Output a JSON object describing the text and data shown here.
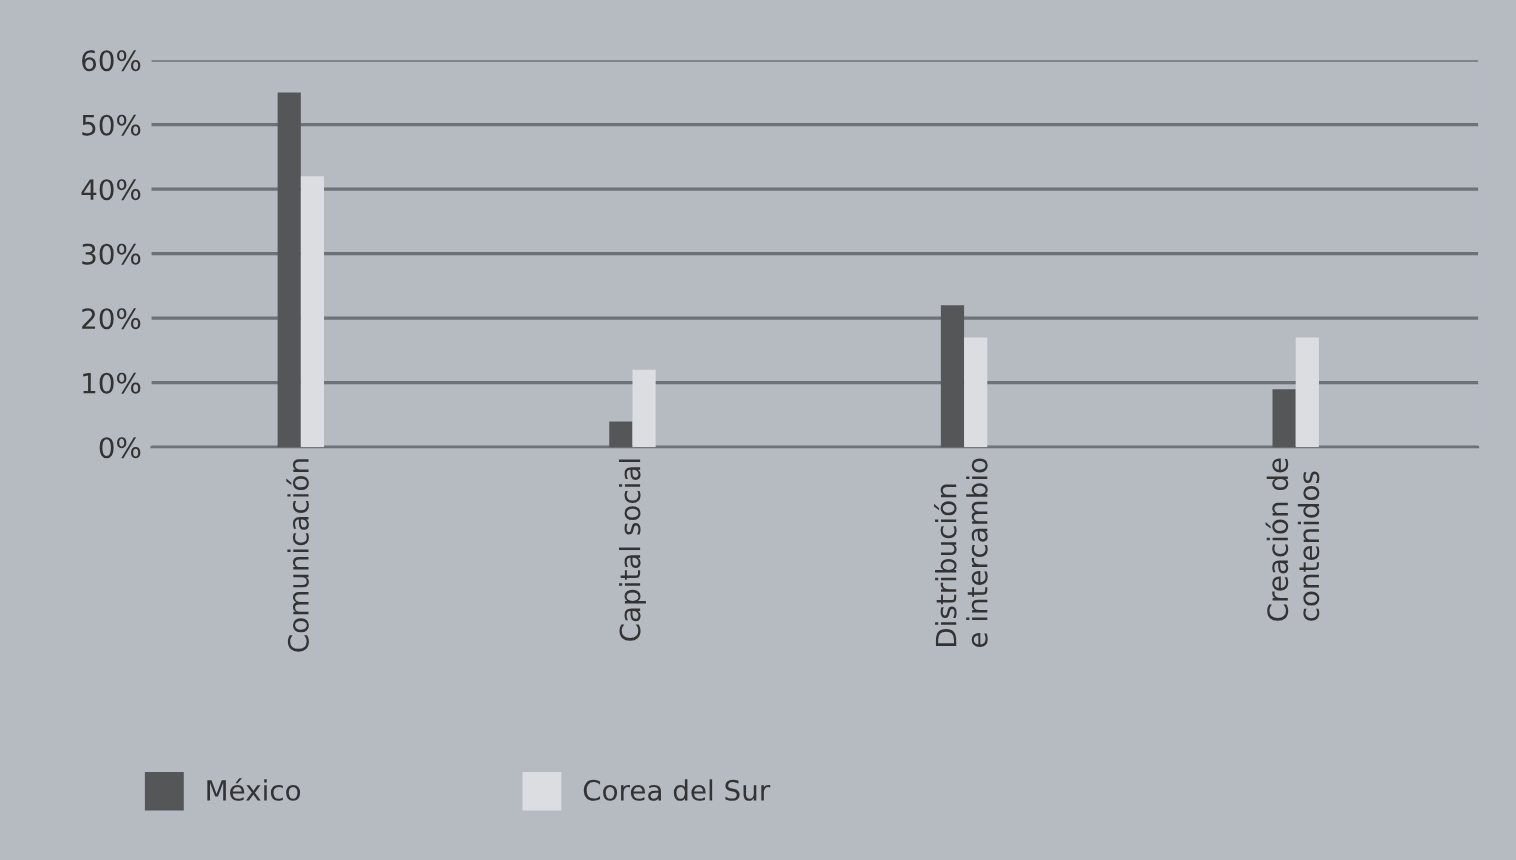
{
  "chart_data": {
    "type": "bar",
    "categories": [
      "Comunicación",
      "Capital social",
      "Distribución\ne intercambio",
      "Creación de\ncontenidos"
    ],
    "series": [
      {
        "name": "México",
        "color": "#555658",
        "values": [
          55,
          4,
          22,
          9
        ]
      },
      {
        "name": "Corea del Sur",
        "color": "#dcdde0",
        "values": [
          42,
          12,
          17,
          17
        ]
      }
    ],
    "ylim": [
      0,
      60
    ],
    "yticks": [
      {
        "value": 0,
        "label": "0%"
      },
      {
        "value": 10,
        "label": "10%"
      },
      {
        "value": 20,
        "label": "20%"
      },
      {
        "value": 30,
        "label": "30%"
      },
      {
        "value": 40,
        "label": "40%"
      },
      {
        "value": 50,
        "label": "50%"
      },
      {
        "value": 60,
        "label": "60%"
      }
    ],
    "grid": "y",
    "legend": "bottom"
  }
}
